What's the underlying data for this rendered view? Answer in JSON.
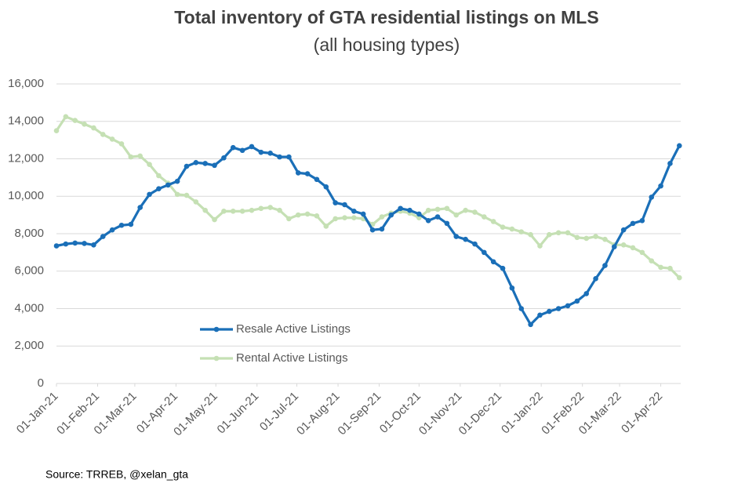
{
  "chart_data": {
    "type": "line",
    "title": "Total inventory of GTA residential listings on MLS",
    "subtitle": "(all housing types)",
    "source": "Source: TRREB, @xelan_gta",
    "x": [
      "2021-01-01",
      "2021-01-08",
      "2021-01-15",
      "2021-01-22",
      "2021-01-29",
      "2021-02-05",
      "2021-02-12",
      "2021-02-19",
      "2021-02-26",
      "2021-03-05",
      "2021-03-12",
      "2021-03-19",
      "2021-03-26",
      "2021-04-02",
      "2021-04-09",
      "2021-04-16",
      "2021-04-23",
      "2021-04-30",
      "2021-05-07",
      "2021-05-14",
      "2021-05-21",
      "2021-05-28",
      "2021-06-04",
      "2021-06-11",
      "2021-06-18",
      "2021-06-25",
      "2021-07-02",
      "2021-07-09",
      "2021-07-16",
      "2021-07-23",
      "2021-07-30",
      "2021-08-06",
      "2021-08-13",
      "2021-08-20",
      "2021-08-27",
      "2021-09-03",
      "2021-09-10",
      "2021-09-17",
      "2021-09-24",
      "2021-10-01",
      "2021-10-08",
      "2021-10-15",
      "2021-10-22",
      "2021-10-29",
      "2021-11-05",
      "2021-11-12",
      "2021-11-19",
      "2021-11-26",
      "2021-12-03",
      "2021-12-10",
      "2021-12-17",
      "2021-12-24",
      "2021-12-31",
      "2022-01-07",
      "2022-01-14",
      "2022-01-21",
      "2022-01-28",
      "2022-02-04",
      "2022-02-11",
      "2022-02-18",
      "2022-02-25",
      "2022-03-04",
      "2022-03-11",
      "2022-03-18",
      "2022-03-25",
      "2022-04-01",
      "2022-04-08",
      "2022-04-15"
    ],
    "series": [
      {
        "name": "Resale Active Listings",
        "color": "#1a6fb8",
        "values": [
          7350,
          7450,
          7500,
          7480,
          7400,
          7850,
          8200,
          8450,
          8500,
          9400,
          10100,
          10400,
          10600,
          10800,
          11600,
          11800,
          11750,
          11650,
          12050,
          12600,
          12450,
          12650,
          12350,
          12300,
          12100,
          12100,
          11250,
          11200,
          10900,
          10500,
          9650,
          9550,
          9200,
          9050,
          8200,
          8250,
          9000,
          9350,
          9250,
          9050,
          8700,
          8900,
          8550,
          7850,
          7700,
          7450,
          7000,
          6500,
          6150,
          5100,
          4000,
          3150,
          3650,
          3850,
          4000,
          4150,
          4400,
          4800,
          5600,
          6300,
          7300,
          8200,
          8550,
          8700,
          9950,
          10550,
          11750,
          12700
        ]
      },
      {
        "name": "Rental Active Listings",
        "color": "#c5e0b4",
        "values": [
          13500,
          14250,
          14050,
          13850,
          13650,
          13300,
          13050,
          12800,
          12100,
          12150,
          11700,
          11100,
          10700,
          10100,
          10050,
          9700,
          9250,
          8750,
          9200,
          9200,
          9200,
          9250,
          9350,
          9400,
          9250,
          8800,
          9000,
          9050,
          8950,
          8400,
          8800,
          8850,
          8850,
          8800,
          8500,
          8900,
          9100,
          9200,
          9100,
          8850,
          9250,
          9300,
          9350,
          9000,
          9250,
          9150,
          8900,
          8650,
          8350,
          8250,
          8100,
          7950,
          7350,
          7950,
          8050,
          8050,
          7800,
          7750,
          7850,
          7700,
          7400,
          7400,
          7250,
          7000,
          6550,
          6200,
          6150,
          5650
        ]
      }
    ],
    "xlim": [
      "2021-01-01",
      "2022-04-16"
    ],
    "xticks": [
      {
        "value": "2021-01-01",
        "label": "01-Jan-21"
      },
      {
        "value": "2021-02-01",
        "label": "01-Feb-21"
      },
      {
        "value": "2021-03-01",
        "label": "01-Mar-21"
      },
      {
        "value": "2021-04-01",
        "label": "01-Apr-21"
      },
      {
        "value": "2021-05-01",
        "label": "01-May-21"
      },
      {
        "value": "2021-06-01",
        "label": "01-Jun-21"
      },
      {
        "value": "2021-07-01",
        "label": "01-Jul-21"
      },
      {
        "value": "2021-08-01",
        "label": "01-Aug-21"
      },
      {
        "value": "2021-09-01",
        "label": "01-Sep-21"
      },
      {
        "value": "2021-10-01",
        "label": "01-Oct-21"
      },
      {
        "value": "2021-11-01",
        "label": "01-Nov-21"
      },
      {
        "value": "2021-12-01",
        "label": "01-Dec-21"
      },
      {
        "value": "2022-01-01",
        "label": "01-Jan-22"
      },
      {
        "value": "2022-02-01",
        "label": "01-Feb-22"
      },
      {
        "value": "2022-03-01",
        "label": "01-Mar-22"
      },
      {
        "value": "2022-04-01",
        "label": "01-Apr-22"
      }
    ],
    "ylim": [
      0,
      16000
    ],
    "yticks": [
      0,
      {
        "value": 2000,
        "label": "2,000"
      },
      {
        "value": 4000,
        "label": "4,000"
      },
      {
        "value": 6000,
        "label": "6,000"
      },
      {
        "value": 8000,
        "label": "8,000"
      },
      {
        "value": 10000,
        "label": "10,000"
      },
      {
        "value": 12000,
        "label": "12,000"
      },
      {
        "value": 14000,
        "label": "14,000"
      },
      {
        "value": 16000,
        "label": "16,000"
      }
    ],
    "grid": true,
    "legend": "lower-center"
  }
}
